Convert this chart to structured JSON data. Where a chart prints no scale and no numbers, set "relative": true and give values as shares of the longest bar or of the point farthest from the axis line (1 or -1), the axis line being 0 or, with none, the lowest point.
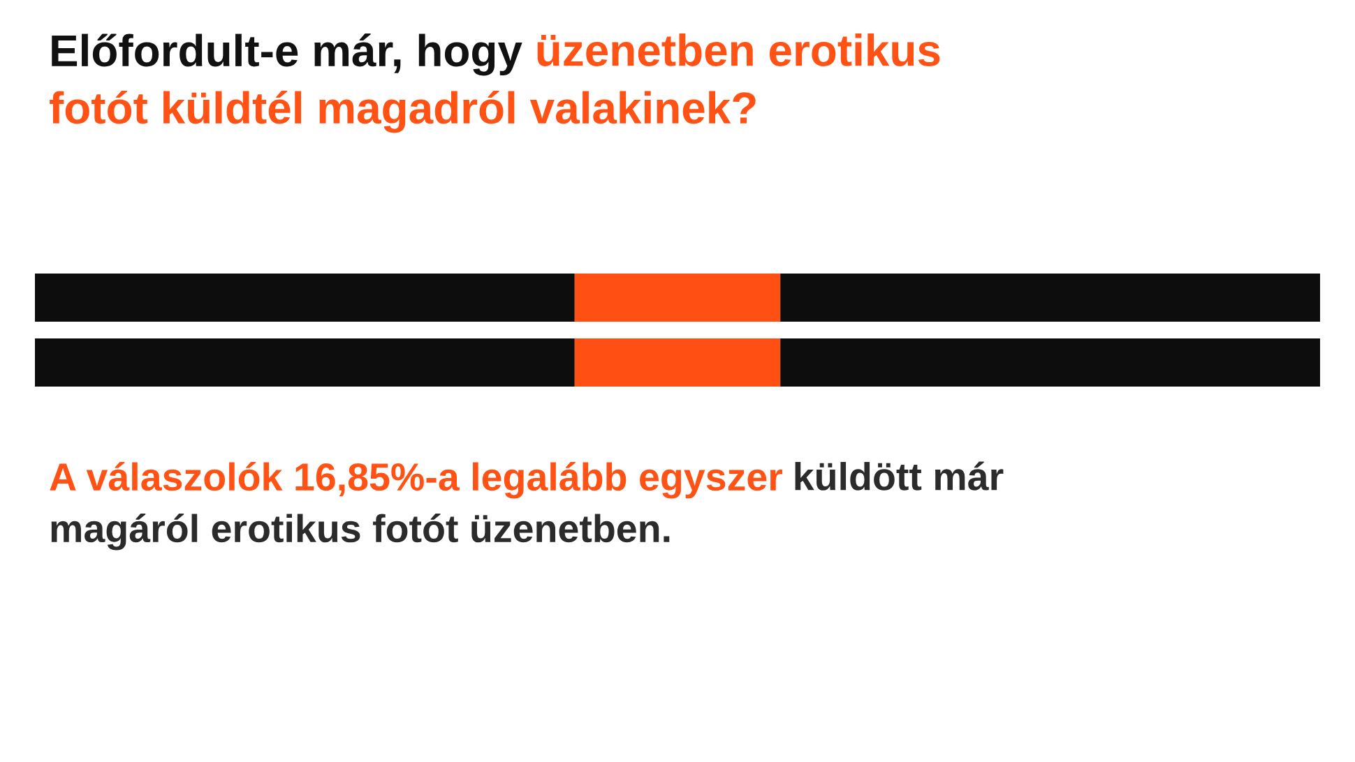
{
  "chart_data": {
    "type": "bar",
    "orientation": "horizontal",
    "stacked": true,
    "relative": true,
    "title": "Előfordult-e már, hogy",
    "subtitle": "üzenetben erotikus fotót küldtél magadról valakinek?",
    "categories": [
      null,
      null
    ],
    "series": [
      {
        "color": "#0d0d0d",
        "values": [
          0.42,
          0.42
        ]
      },
      {
        "color": "#ff4f12",
        "values": [
          0.16,
          0.16
        ]
      },
      {
        "color": "#0d0d0d",
        "values": [
          0.42,
          0.42
        ]
      }
    ],
    "annotations": [
      "A válaszolók 16,85%-a legalább egyszer",
      "küldött már magáról erotikus fotót üzenetben."
    ]
  }
}
